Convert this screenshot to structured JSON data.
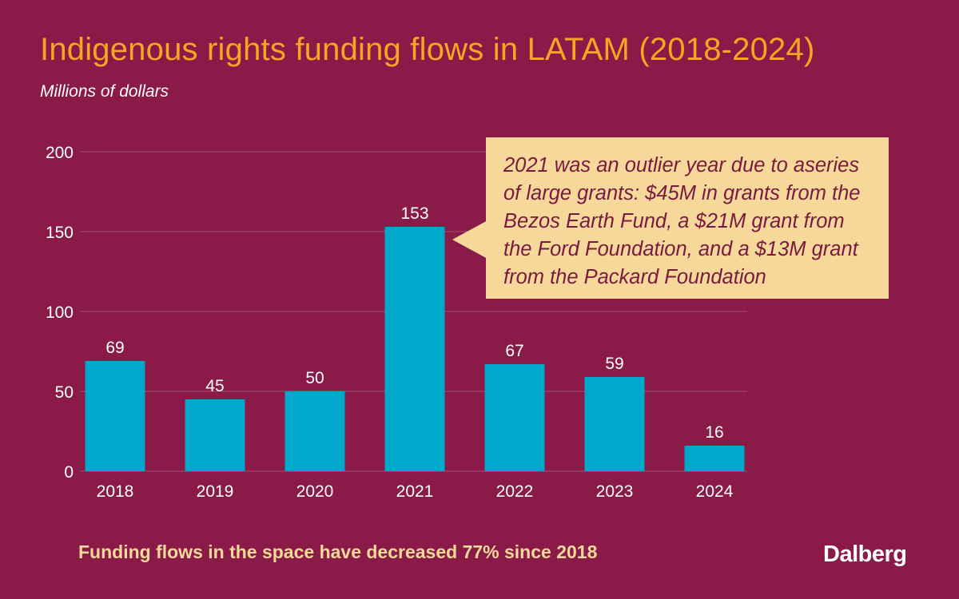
{
  "title": "Indigenous rights funding flows in LATAM (2018-2024)",
  "subtitle": "Millions of dollars",
  "callout": "2021 was an outlier year due to aseries of large grants: $45M in grants from the Bezos Earth Fund, a $21M grant from the Ford Foundation, and a $13M grant from the Packard Foundation",
  "footer_note": "Funding flows in the space have decreased 77% since 2018",
  "logo": "Dalberg",
  "colors": {
    "background": "#8a1a48",
    "bar": "#00a8cc",
    "title": "#f5a623",
    "callout_bg": "#f5d89a"
  },
  "chart_data": {
    "type": "bar",
    "categories": [
      "2018",
      "2019",
      "2020",
      "2021",
      "2022",
      "2023",
      "2024"
    ],
    "values": [
      69,
      45,
      50,
      153,
      67,
      59,
      16
    ],
    "yticks": [
      0,
      50,
      100,
      150,
      200
    ],
    "ylim": [
      0,
      200
    ],
    "grid": true,
    "data_labels": true
  }
}
